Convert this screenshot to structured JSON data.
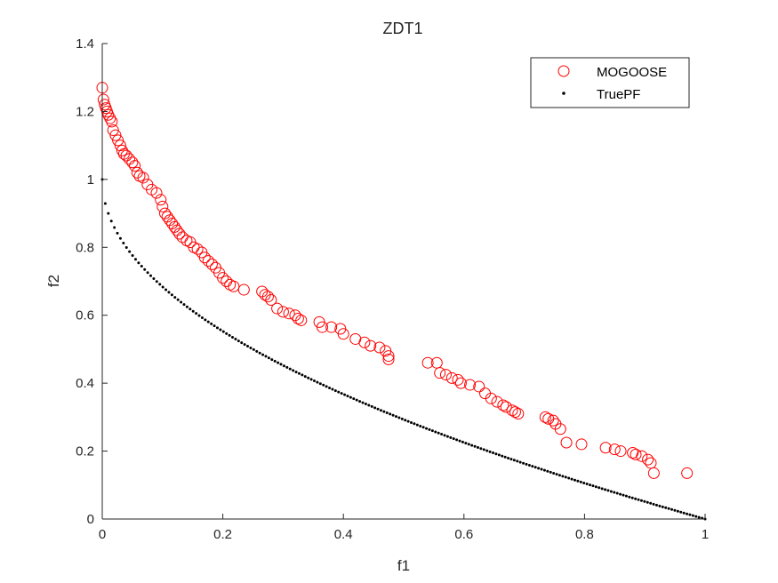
{
  "chart_data": {
    "type": "scatter",
    "title": "ZDT1",
    "xlabel": "f1",
    "ylabel": "f2",
    "xlim": [
      0,
      1
    ],
    "ylim": [
      0,
      1.4
    ],
    "xticks": [
      "0",
      "0.2",
      "0.4",
      "0.6",
      "0.8",
      "1"
    ],
    "yticks": [
      "0",
      "0.2",
      "0.4",
      "0.6",
      "0.8",
      "1",
      "1.2",
      "1.4"
    ],
    "grid": false,
    "legend_placement": "top-right",
    "series": [
      {
        "name": "MOGOOSE",
        "marker": "circle-open",
        "color": "#ff0000",
        "points": [
          [
            0.0,
            1.27
          ],
          [
            0.002,
            1.235
          ],
          [
            0.004,
            1.22
          ],
          [
            0.006,
            1.21
          ],
          [
            0.008,
            1.2
          ],
          [
            0.01,
            1.19
          ],
          [
            0.013,
            1.18
          ],
          [
            0.016,
            1.17
          ],
          [
            0.018,
            1.145
          ],
          [
            0.022,
            1.13
          ],
          [
            0.026,
            1.115
          ],
          [
            0.03,
            1.1
          ],
          [
            0.033,
            1.085
          ],
          [
            0.036,
            1.075
          ],
          [
            0.04,
            1.07
          ],
          [
            0.045,
            1.06
          ],
          [
            0.05,
            1.05
          ],
          [
            0.054,
            1.04
          ],
          [
            0.058,
            1.02
          ],
          [
            0.062,
            1.01
          ],
          [
            0.068,
            1.005
          ],
          [
            0.075,
            0.985
          ],
          [
            0.082,
            0.97
          ],
          [
            0.09,
            0.96
          ],
          [
            0.097,
            0.94
          ],
          [
            0.1,
            0.92
          ],
          [
            0.104,
            0.9
          ],
          [
            0.108,
            0.89
          ],
          [
            0.112,
            0.88
          ],
          [
            0.116,
            0.87
          ],
          [
            0.12,
            0.86
          ],
          [
            0.124,
            0.85
          ],
          [
            0.128,
            0.84
          ],
          [
            0.133,
            0.83
          ],
          [
            0.14,
            0.82
          ],
          [
            0.146,
            0.815
          ],
          [
            0.152,
            0.8
          ],
          [
            0.158,
            0.795
          ],
          [
            0.165,
            0.785
          ],
          [
            0.17,
            0.77
          ],
          [
            0.176,
            0.76
          ],
          [
            0.182,
            0.75
          ],
          [
            0.188,
            0.74
          ],
          [
            0.194,
            0.725
          ],
          [
            0.2,
            0.71
          ],
          [
            0.206,
            0.7
          ],
          [
            0.212,
            0.69
          ],
          [
            0.218,
            0.685
          ],
          [
            0.235,
            0.675
          ],
          [
            0.265,
            0.67
          ],
          [
            0.27,
            0.66
          ],
          [
            0.275,
            0.655
          ],
          [
            0.28,
            0.645
          ],
          [
            0.29,
            0.62
          ],
          [
            0.3,
            0.61
          ],
          [
            0.31,
            0.605
          ],
          [
            0.32,
            0.6
          ],
          [
            0.325,
            0.59
          ],
          [
            0.33,
            0.585
          ],
          [
            0.36,
            0.58
          ],
          [
            0.365,
            0.565
          ],
          [
            0.38,
            0.565
          ],
          [
            0.395,
            0.56
          ],
          [
            0.4,
            0.545
          ],
          [
            0.42,
            0.53
          ],
          [
            0.435,
            0.52
          ],
          [
            0.445,
            0.51
          ],
          [
            0.46,
            0.505
          ],
          [
            0.47,
            0.495
          ],
          [
            0.475,
            0.48
          ],
          [
            0.475,
            0.47
          ],
          [
            0.54,
            0.46
          ],
          [
            0.555,
            0.46
          ],
          [
            0.56,
            0.43
          ],
          [
            0.57,
            0.425
          ],
          [
            0.58,
            0.415
          ],
          [
            0.59,
            0.41
          ],
          [
            0.595,
            0.4
          ],
          [
            0.61,
            0.395
          ],
          [
            0.625,
            0.39
          ],
          [
            0.635,
            0.37
          ],
          [
            0.645,
            0.355
          ],
          [
            0.655,
            0.345
          ],
          [
            0.665,
            0.335
          ],
          [
            0.67,
            0.33
          ],
          [
            0.68,
            0.32
          ],
          [
            0.685,
            0.315
          ],
          [
            0.69,
            0.31
          ],
          [
            0.735,
            0.3
          ],
          [
            0.74,
            0.295
          ],
          [
            0.748,
            0.29
          ],
          [
            0.752,
            0.28
          ],
          [
            0.76,
            0.265
          ],
          [
            0.77,
            0.225
          ],
          [
            0.795,
            0.22
          ],
          [
            0.835,
            0.21
          ],
          [
            0.85,
            0.205
          ],
          [
            0.86,
            0.2
          ],
          [
            0.88,
            0.195
          ],
          [
            0.885,
            0.19
          ],
          [
            0.895,
            0.185
          ],
          [
            0.905,
            0.175
          ],
          [
            0.91,
            0.165
          ],
          [
            0.915,
            0.135
          ],
          [
            0.97,
            0.135
          ]
        ]
      },
      {
        "name": "TruePF",
        "marker": "dot",
        "color": "#000000",
        "function": "f2 = 1 - sqrt(f1)",
        "x_range": [
          0,
          1
        ],
        "n_points": 200
      }
    ]
  },
  "legend": {
    "entries": [
      "MOGOOSE",
      "TruePF"
    ]
  }
}
